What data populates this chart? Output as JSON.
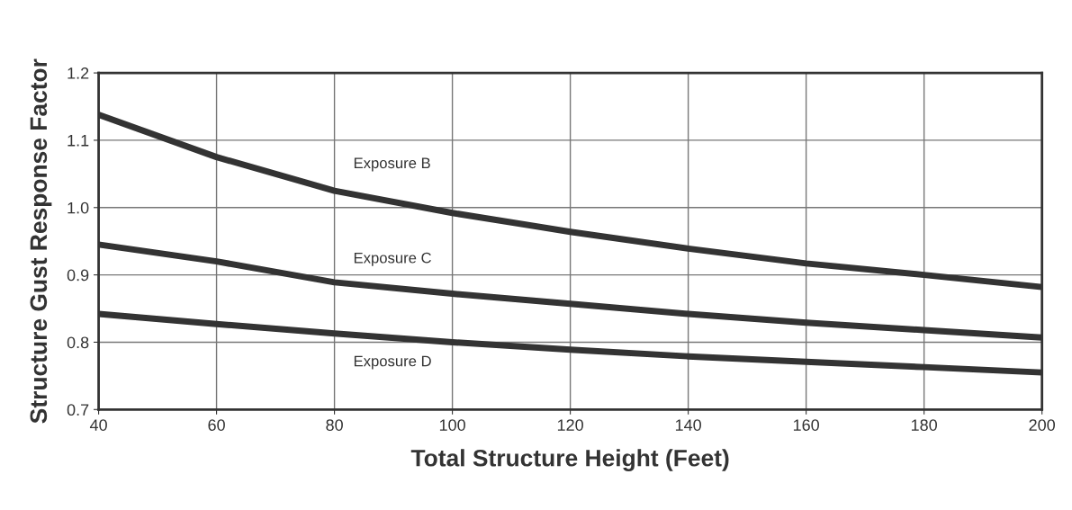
{
  "chart_data": {
    "type": "line",
    "xlabel": "Total Structure Height (Feet)",
    "ylabel": "Structure Gust Response Factor",
    "x": [
      40,
      60,
      80,
      100,
      120,
      140,
      160,
      180,
      200
    ],
    "series": [
      {
        "name": "Exposure B",
        "color": "#333333",
        "values": [
          1.138,
          1.075,
          1.025,
          0.992,
          0.964,
          0.939,
          0.917,
          0.9,
          0.882
        ]
      },
      {
        "name": "Exposure C",
        "color": "#333333",
        "values": [
          0.945,
          0.92,
          0.889,
          0.872,
          0.857,
          0.842,
          0.829,
          0.818,
          0.807
        ]
      },
      {
        "name": "Exposure D",
        "color": "#333333",
        "values": [
          0.842,
          0.827,
          0.813,
          0.8,
          0.789,
          0.779,
          0.771,
          0.763,
          0.755
        ]
      }
    ],
    "xlim": [
      40,
      200
    ],
    "xticks": [
      40,
      60,
      80,
      100,
      120,
      140,
      160,
      180,
      200
    ],
    "ylim": [
      0.7,
      1.2
    ],
    "yticks": [
      0.7,
      0.8,
      0.9,
      {
        "value": 1,
        "label": "1.0"
      },
      1.1,
      1.2
    ],
    "grid": true,
    "line_style": "solid",
    "marker": "none",
    "legend": false
  }
}
